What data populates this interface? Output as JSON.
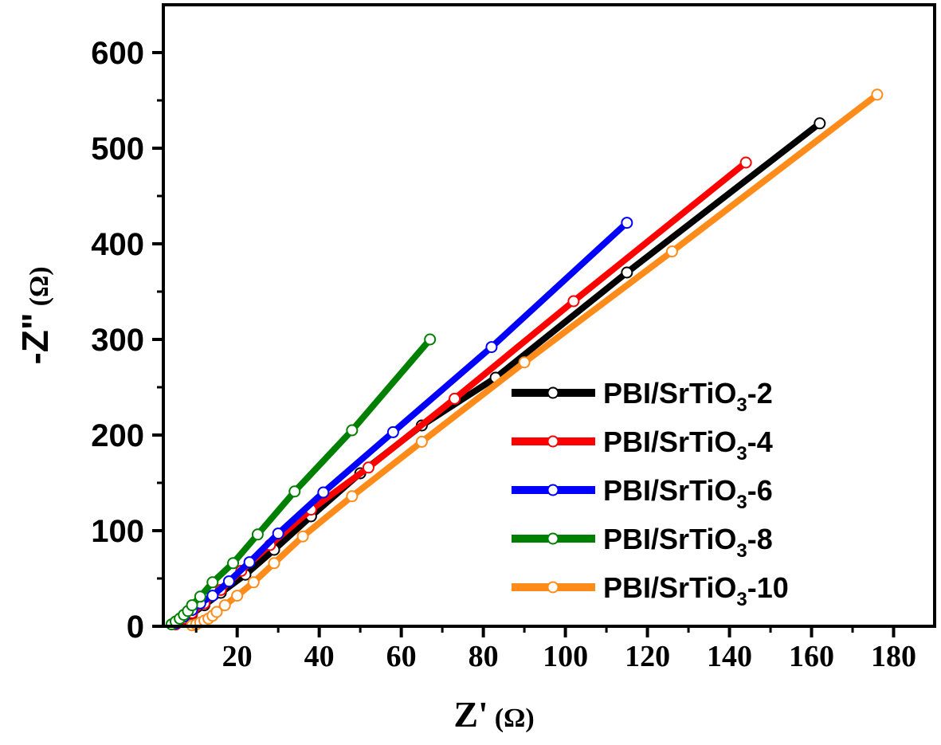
{
  "chart_data": {
    "type": "line",
    "title": "",
    "xlabel": {
      "main": "Z'",
      "unit": "(Ω)"
    },
    "ylabel": {
      "main": "-Z\"",
      "unit": "(Ω)"
    },
    "xlim": [
      2,
      190
    ],
    "ylim": [
      0,
      650
    ],
    "xticks": [
      20,
      40,
      60,
      80,
      100,
      120,
      140,
      160,
      180
    ],
    "yticks": [
      0,
      100,
      200,
      300,
      400,
      500,
      600
    ],
    "legend_position": "center-right",
    "series": [
      {
        "name": "PBI/SrTiO3-2",
        "label_parts": [
          "PBI/SrTiO",
          "3",
          "-2"
        ],
        "color": "#000000",
        "x": [
          5,
          7,
          9,
          12,
          16,
          22,
          29,
          38,
          50,
          65,
          83,
          115,
          162
        ],
        "y": [
          2,
          7,
          13,
          22,
          35,
          54,
          80,
          115,
          160,
          210,
          260,
          370,
          526
        ]
      },
      {
        "name": "PBI/SrTiO3-4",
        "label_parts": [
          "PBI/SrTiO",
          "3",
          "-4"
        ],
        "color": "#ff0000",
        "x": [
          5,
          7,
          9,
          12,
          16,
          21,
          28,
          38,
          52,
          73,
          102,
          144
        ],
        "y": [
          2,
          8,
          14,
          24,
          38,
          58,
          85,
          122,
          166,
          238,
          340,
          485
        ]
      },
      {
        "name": "PBI/SrTiO3-6",
        "label_parts": [
          "PBI/SrTiO",
          "3",
          "-6"
        ],
        "color": "#0000ff",
        "x": [
          5,
          7,
          9,
          11,
          14,
          18,
          23,
          30,
          41,
          58,
          82,
          115
        ],
        "y": [
          3,
          10,
          17,
          24,
          32,
          47,
          67,
          97,
          140,
          203,
          292,
          422
        ]
      },
      {
        "name": "PBI/SrTiO3-8",
        "label_parts": [
          "PBI/SrTiO",
          "3",
          "-8"
        ],
        "color": "#008000",
        "x": [
          4,
          5,
          6,
          7,
          8,
          9,
          11,
          14,
          19,
          25,
          34,
          48,
          67
        ],
        "y": [
          2,
          5,
          8,
          12,
          16,
          22,
          31,
          46,
          66,
          96,
          141,
          205,
          300
        ]
      },
      {
        "name": "PBI/SrTiO3-10",
        "label_parts": [
          "PBI/SrTiO",
          "3",
          "-10"
        ],
        "color": "#ff8c1a",
        "x": [
          9,
          10,
          11,
          12,
          13,
          14,
          15,
          17,
          20,
          24,
          29,
          36,
          48,
          65,
          90,
          126,
          176
        ],
        "y": [
          1,
          2,
          4,
          6,
          8,
          11,
          15,
          22,
          32,
          46,
          66,
          94,
          136,
          193,
          276,
          392,
          556
        ]
      }
    ]
  }
}
